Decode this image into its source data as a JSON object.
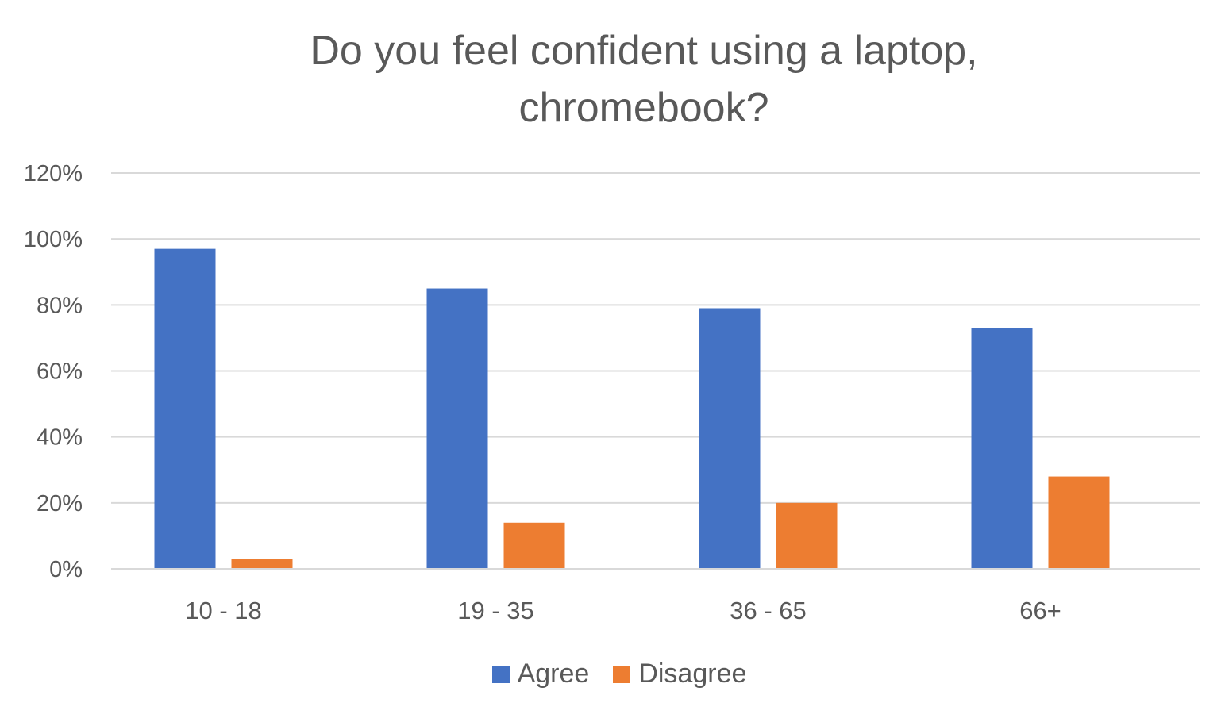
{
  "chart_data": {
    "type": "bar",
    "title_lines": [
      "Do you feel confident using a laptop,",
      "chromebook?"
    ],
    "categories": [
      "10 - 18",
      "19 - 35",
      "36 - 65",
      "66+"
    ],
    "series": [
      {
        "name": "Agree",
        "color": "#4472C4",
        "values": [
          0.97,
          0.85,
          0.79,
          0.73
        ]
      },
      {
        "name": "Disagree",
        "color": "#ED7D31",
        "values": [
          0.03,
          0.14,
          0.2,
          0.28
        ]
      }
    ],
    "ylim": [
      0,
      1.2
    ],
    "yticks": [
      0,
      0.2,
      0.4,
      0.6,
      0.8,
      1.0,
      1.2
    ],
    "ytick_labels": [
      "0%",
      "20%",
      "40%",
      "60%",
      "80%",
      "100%",
      "120%"
    ],
    "grid": true,
    "legend_position": "bottom",
    "gridline_color": "#D9D9D9",
    "axis_text_color": "#595959"
  }
}
